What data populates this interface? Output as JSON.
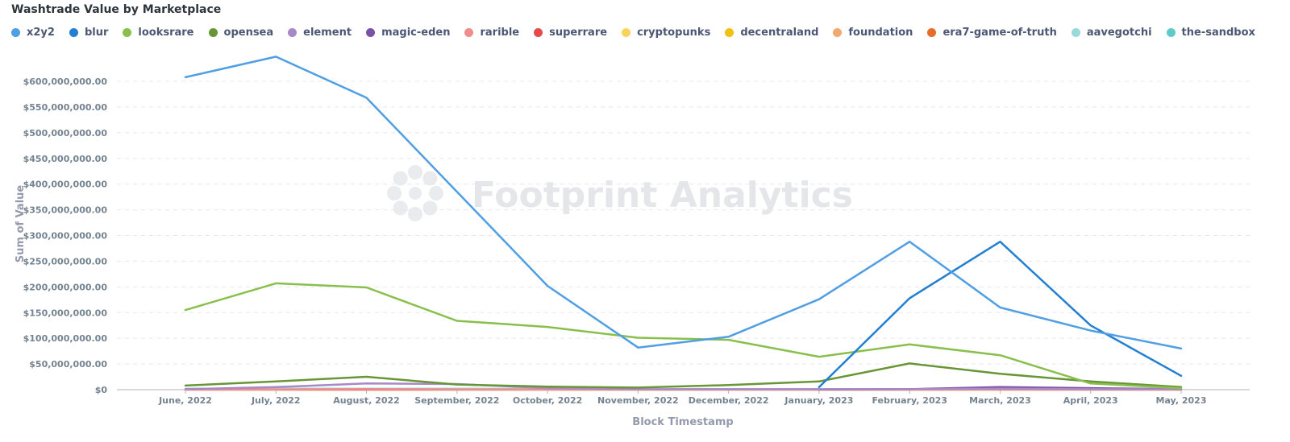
{
  "chart_data": {
    "type": "line",
    "title": "Washtrade Value by Marketplace",
    "xlabel": "Block Timestamp",
    "ylabel": "Sum of Value",
    "watermark": "Footprint Analytics",
    "categories": [
      "June, 2022",
      "July, 2022",
      "August, 2022",
      "September, 2022",
      "October, 2022",
      "November, 2022",
      "December, 2022",
      "January, 2023",
      "February, 2023",
      "March, 2023",
      "April, 2023",
      "May, 2023"
    ],
    "ylim": [
      0,
      600000000
    ],
    "yticks": [
      {
        "value": 0,
        "label": "$0"
      },
      {
        "value": 50000000,
        "label": "$50,000,000.00"
      },
      {
        "value": 100000000,
        "label": "$100,000,000.00"
      },
      {
        "value": 150000000,
        "label": "$150,000,000.00"
      },
      {
        "value": 200000000,
        "label": "$200,000,000.00"
      },
      {
        "value": 250000000,
        "label": "$250,000,000.00"
      },
      {
        "value": 300000000,
        "label": "$300,000,000.00"
      },
      {
        "value": 350000000,
        "label": "$350,000,000.00"
      },
      {
        "value": 400000000,
        "label": "$400,000,000.00"
      },
      {
        "value": 450000000,
        "label": "$450,000,000.00"
      },
      {
        "value": 500000000,
        "label": "$500,000,000.00"
      },
      {
        "value": 550000000,
        "label": "$550,000,000.00"
      },
      {
        "value": 600000000,
        "label": "$600,000,000.00"
      }
    ],
    "grid": true,
    "legend_position": "top",
    "series": [
      {
        "name": "x2y2",
        "color": "#509ee3",
        "values": [
          608000000,
          648000000,
          568000000,
          385000000,
          202000000,
          82000000,
          103000000,
          176000000,
          288000000,
          160000000,
          115000000,
          80000000
        ]
      },
      {
        "name": "blur",
        "color": "#227fd2",
        "values": [
          null,
          null,
          null,
          null,
          null,
          null,
          null,
          5000000,
          178000000,
          288000000,
          125000000,
          27000000
        ]
      },
      {
        "name": "looksrare",
        "color": "#88bf4d",
        "values": [
          155000000,
          207000000,
          199000000,
          134000000,
          122000000,
          101000000,
          97000000,
          64000000,
          88000000,
          67000000,
          12000000,
          3000000
        ]
      },
      {
        "name": "opensea",
        "color": "#689636",
        "values": [
          8000000,
          16000000,
          25000000,
          10000000,
          6000000,
          4000000,
          9000000,
          16000000,
          51000000,
          31000000,
          16000000,
          5000000
        ]
      },
      {
        "name": "element",
        "color": "#a989c5",
        "values": [
          1000000,
          5000000,
          12000000,
          11000000,
          3000000,
          1000000,
          1000000,
          1000000,
          1000000,
          2000000,
          1000000,
          1000000
        ]
      },
      {
        "name": "magic-eden",
        "color": "#7b51a8",
        "values": [
          null,
          null,
          null,
          null,
          null,
          null,
          null,
          500000,
          1000000,
          5000000,
          3000000,
          1000000
        ]
      },
      {
        "name": "rarible",
        "color": "#ef8c8c",
        "values": [
          500000,
          500000,
          1000000,
          500000,
          500000,
          300000,
          300000,
          300000,
          300000,
          300000,
          300000,
          300000
        ]
      },
      {
        "name": "superrare",
        "color": "#e5494c",
        "values": [
          200000,
          200000,
          200000,
          200000,
          200000,
          200000,
          200000,
          200000,
          200000,
          200000,
          200000,
          200000
        ]
      },
      {
        "name": "cryptopunks",
        "color": "#f9d45c",
        "values": [
          300000,
          300000,
          300000,
          300000,
          300000,
          300000,
          300000,
          300000,
          300000,
          300000,
          300000,
          300000
        ]
      },
      {
        "name": "decentraland",
        "color": "#f2c00f",
        "values": [
          100000,
          100000,
          100000,
          100000,
          100000,
          100000,
          100000,
          100000,
          100000,
          100000,
          100000,
          100000
        ]
      },
      {
        "name": "foundation",
        "color": "#f2a86f",
        "values": [
          100000,
          100000,
          100000,
          100000,
          100000,
          100000,
          100000,
          100000,
          100000,
          100000,
          100000,
          100000
        ]
      },
      {
        "name": "era7-game-of-truth",
        "color": "#e86b29",
        "values": [
          null,
          null,
          null,
          null,
          null,
          null,
          null,
          null,
          null,
          1000000,
          1000000,
          500000
        ]
      },
      {
        "name": "aavegotchi",
        "color": "#98d9d9",
        "values": [
          2000000,
          2000000,
          2000000,
          2000000,
          1500000,
          1000000,
          1000000,
          1000000,
          1000000,
          1000000,
          1000000,
          1000000
        ]
      },
      {
        "name": "the-sandbox",
        "color": "#5fcac9",
        "values": [
          300000,
          300000,
          300000,
          300000,
          300000,
          300000,
          300000,
          300000,
          300000,
          300000,
          300000,
          300000
        ]
      }
    ]
  }
}
